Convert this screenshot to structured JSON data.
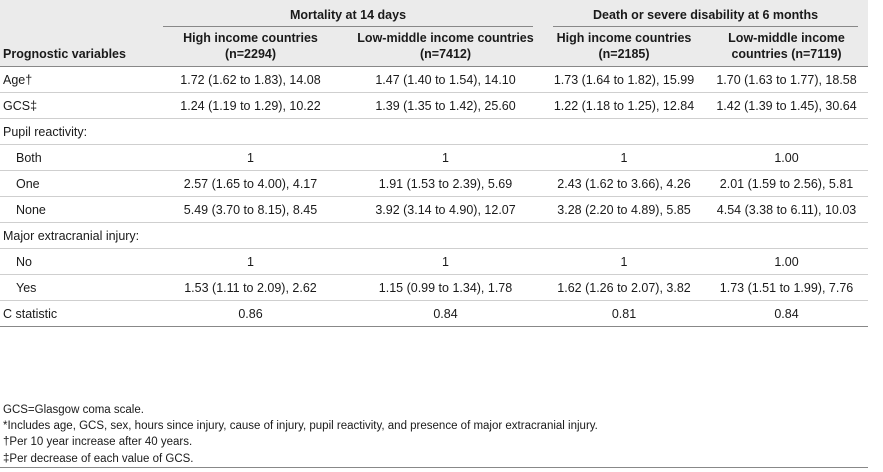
{
  "table": {
    "group_headers": [
      "Mortality at 14 days",
      "Death or severe disability at 6 months"
    ],
    "column_headers": [
      "Prognostic variables",
      "High income countries (n=2294)",
      "Low-middle income countries (n=7412)",
      "High income countries (n=2185)",
      "Low-middle income countries (n=7119)"
    ],
    "rows": [
      {
        "label": "Age†",
        "indent": false,
        "cells": [
          "1.72 (1.62 to 1.83), 14.08",
          "1.47 (1.40 to 1.54), 14.10",
          "1.73 (1.64 to 1.82), 15.99",
          "1.70 (1.63 to 1.77), 18.58"
        ]
      },
      {
        "label": "GCS‡",
        "indent": false,
        "cells": [
          "1.24 (1.19 to 1.29), 10.22",
          "1.39 (1.35 to 1.42), 25.60",
          "1.22 (1.18 to 1.25), 12.84",
          "1.42 (1.39 to 1.45), 30.64"
        ]
      },
      {
        "label": "Pupil reactivity:",
        "indent": false,
        "cells": [
          "",
          "",
          "",
          ""
        ]
      },
      {
        "label": "Both",
        "indent": true,
        "cells": [
          "1",
          "1",
          "1",
          "1.00"
        ]
      },
      {
        "label": "One",
        "indent": true,
        "cells": [
          "2.57 (1.65 to 4.00), 4.17",
          "1.91 (1.53 to 2.39), 5.69",
          "2.43 (1.62 to 3.66), 4.26",
          "2.01 (1.59 to 2.56), 5.81"
        ]
      },
      {
        "label": "None",
        "indent": true,
        "cells": [
          "5.49 (3.70 to 8.15), 8.45",
          "3.92 (3.14 to 4.90), 12.07",
          "3.28 (2.20 to 4.89), 5.85",
          "4.54 (3.38 to 6.11), 10.03"
        ]
      },
      {
        "label": "Major extracranial injury:",
        "indent": false,
        "cells": [
          "",
          "",
          "",
          ""
        ]
      },
      {
        "label": "No",
        "indent": true,
        "cells": [
          "1",
          "1",
          "1",
          "1.00"
        ]
      },
      {
        "label": "Yes",
        "indent": true,
        "cells": [
          "1.53 (1.11 to 2.09), 2.62",
          "1.15 (0.99 to 1.34), 1.78",
          "1.62 (1.26 to 2.07), 3.82",
          "1.73 (1.51 to 1.99), 7.76"
        ]
      },
      {
        "label": "C statistic",
        "indent": false,
        "cells": [
          "0.86",
          "0.84",
          "0.81",
          "0.84"
        ]
      }
    ]
  },
  "footnotes": [
    "GCS=Glasgow coma scale.",
    "*Includes age, GCS, sex, hours since injury, cause of injury, pupil reactivity, and presence of major extracranial injury.",
    "†Per 10 year increase after 40 years.",
    "‡Per decrease of each value of GCS."
  ]
}
